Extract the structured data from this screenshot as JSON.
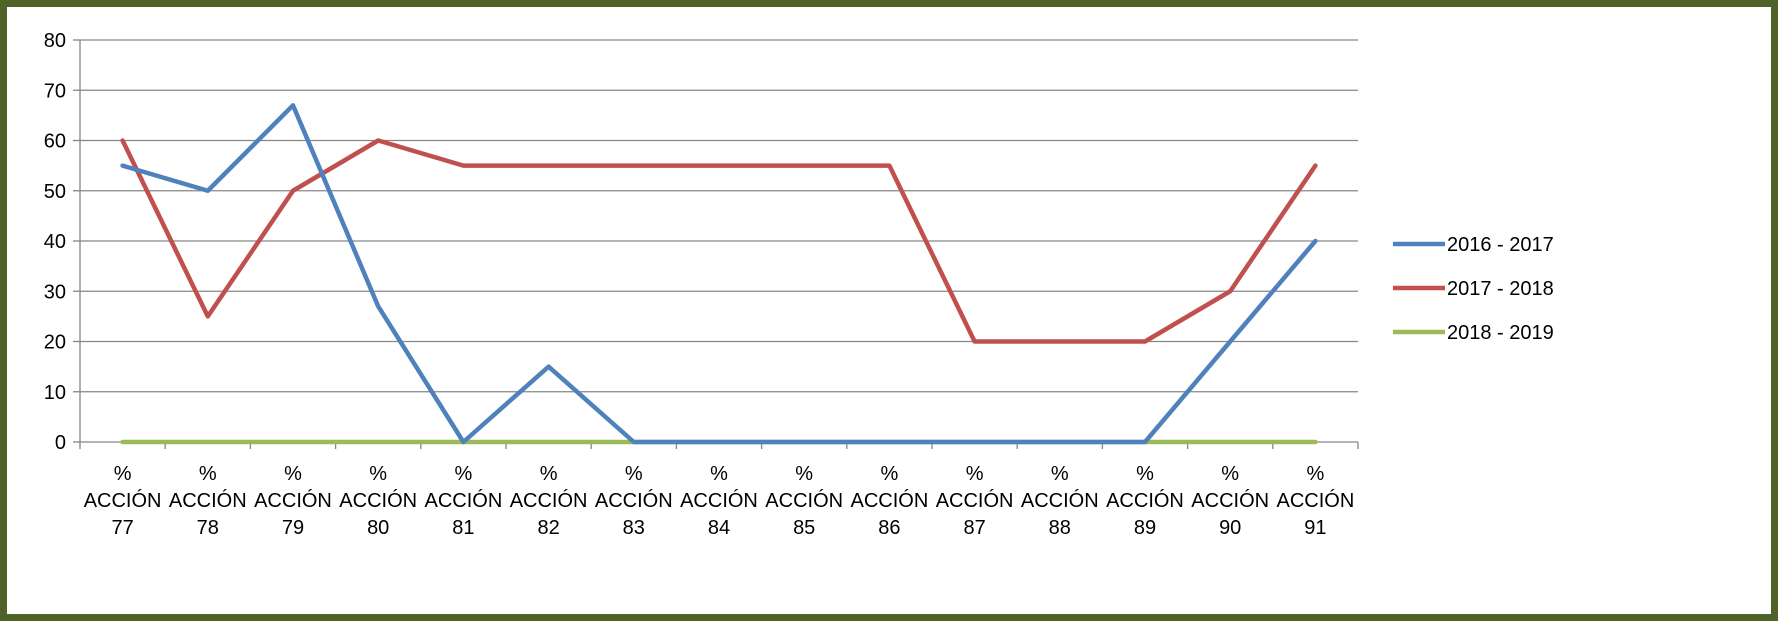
{
  "chart_data": {
    "type": "line",
    "title": "",
    "xlabel": "",
    "ylabel": "",
    "ylim": [
      0,
      80
    ],
    "yticks": [
      0,
      10,
      20,
      30,
      40,
      50,
      60,
      70,
      80
    ],
    "grid": true,
    "legend_position": "right",
    "categories": [
      [
        "%",
        "ACCIÓN",
        "77"
      ],
      [
        "%",
        "ACCIÓN",
        "78"
      ],
      [
        "%",
        "ACCIÓN",
        "79"
      ],
      [
        "%",
        "ACCIÓN",
        "80"
      ],
      [
        "%",
        "ACCIÓN",
        "81"
      ],
      [
        "%",
        "ACCIÓN",
        "82"
      ],
      [
        "%",
        "ACCIÓN",
        "83"
      ],
      [
        "%",
        "ACCIÓN",
        "84"
      ],
      [
        "%",
        "ACCIÓN",
        "85"
      ],
      [
        "%",
        "ACCIÓN",
        "86"
      ],
      [
        "%",
        "ACCIÓN",
        "87"
      ],
      [
        "%",
        "ACCIÓN",
        "88"
      ],
      [
        "%",
        "ACCIÓN",
        "89"
      ],
      [
        "%",
        "ACCIÓN",
        "90"
      ],
      [
        "%",
        "ACCIÓN",
        "91"
      ]
    ],
    "series": [
      {
        "name": "2016 - 2017",
        "color": "#4f81bd",
        "values": [
          55,
          50,
          67,
          27,
          0,
          15,
          0,
          0,
          0,
          0,
          0,
          0,
          0,
          20,
          40
        ]
      },
      {
        "name": "2017 - 2018",
        "color": "#c0504d",
        "values": [
          60,
          25,
          50,
          60,
          55,
          55,
          55,
          55,
          55,
          55,
          20,
          20,
          20,
          30,
          55
        ]
      },
      {
        "name": "2018 - 2019",
        "color": "#9bbb59",
        "values": [
          0,
          0,
          0,
          0,
          0,
          0,
          0,
          0,
          0,
          0,
          0,
          0,
          0,
          0,
          0
        ]
      }
    ]
  }
}
